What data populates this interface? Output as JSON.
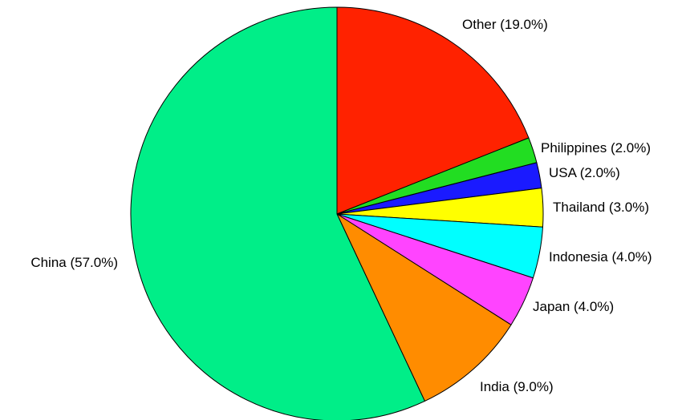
{
  "chart_data": {
    "type": "pie",
    "title": "",
    "start_angle_deg": 0,
    "direction": "clockwise",
    "slices": [
      {
        "name": "Other",
        "value": 19.0,
        "label": "Other (19.0%)",
        "color": "#ff2200"
      },
      {
        "name": "Philippines",
        "value": 2.0,
        "label": "Philippines (2.0%)",
        "color": "#22dd22"
      },
      {
        "name": "USA",
        "value": 2.0,
        "label": "USA (2.0%)",
        "color": "#1a1aff"
      },
      {
        "name": "Thailand",
        "value": 3.0,
        "label": "Thailand (3.0%)",
        "color": "#ffff00"
      },
      {
        "name": "Indonesia",
        "value": 4.0,
        "label": "Indonesia (4.0%)",
        "color": "#00ffff"
      },
      {
        "name": "Japan",
        "value": 4.0,
        "label": "Japan (4.0%)",
        "color": "#ff44ff"
      },
      {
        "name": "India",
        "value": 9.0,
        "label": "India (9.0%)",
        "color": "#ff8c00"
      },
      {
        "name": "China",
        "value": 57.0,
        "label": "China (57.0%)",
        "color": "#00ee88"
      }
    ]
  }
}
